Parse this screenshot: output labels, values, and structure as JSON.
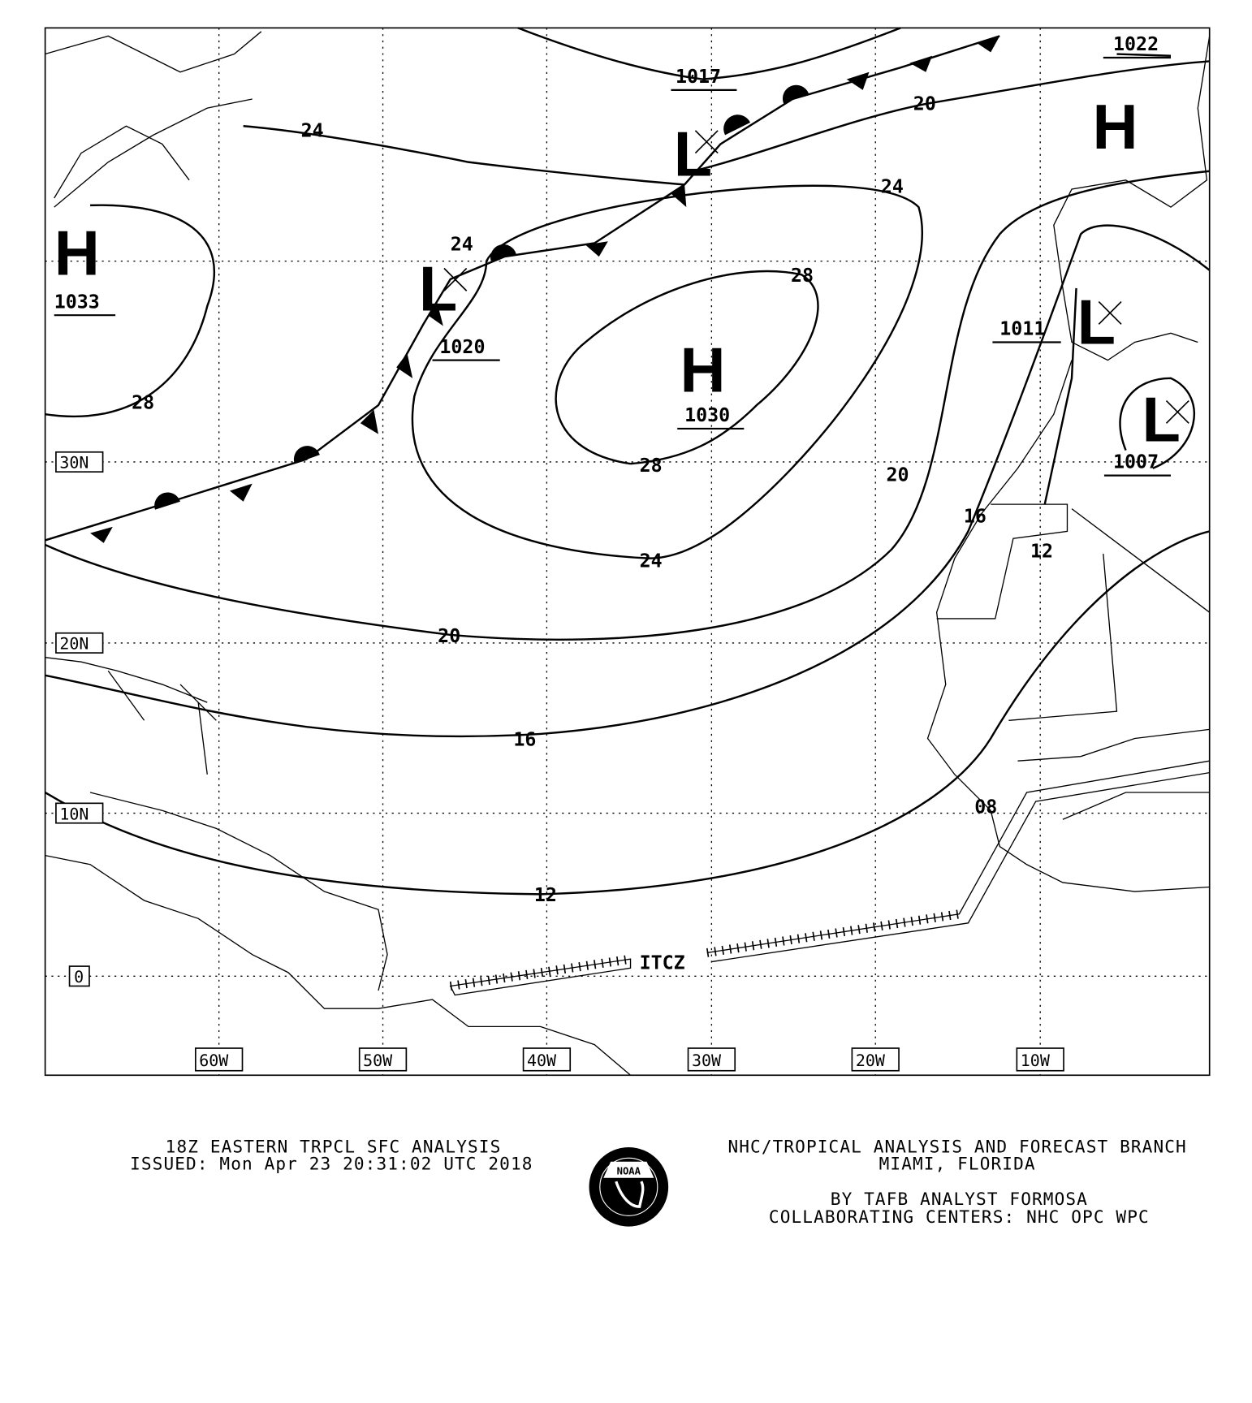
{
  "map": {
    "isobar_labels": [
      "1017",
      "1022",
      "20",
      "24",
      "24",
      "1033",
      "1020",
      "28",
      "28",
      "1030",
      "24",
      "1011",
      "1007",
      "20",
      "16",
      "12",
      "28",
      "24",
      "20",
      "16",
      "12",
      "08"
    ],
    "pressure_centers": [
      {
        "type": "H",
        "value": "1033"
      },
      {
        "type": "L",
        "value": "1020"
      },
      {
        "type": "L",
        "value": "1017"
      },
      {
        "type": "H",
        "value": "1030"
      },
      {
        "type": "H",
        "value": "1022"
      },
      {
        "type": "L",
        "value": "1011"
      },
      {
        "type": "L",
        "value": "1007"
      }
    ],
    "feature_labels": {
      "itcz": "ITCZ"
    },
    "latitude_labels": [
      "30N",
      "20N",
      "10N",
      "0"
    ],
    "longitude_labels": [
      "60W",
      "50W",
      "40W",
      "30W",
      "20W",
      "10W"
    ]
  },
  "footer": {
    "title": "18Z EASTERN TRPCL SFC ANALYSIS",
    "issued": "ISSUED: Mon Apr 23 20:31:02 UTC 2018",
    "org": "NHC/TROPICAL ANALYSIS AND FORECAST BRANCH",
    "location": "MIAMI,  FLORIDA",
    "analyst": "BY TAFB ANALYST  FORMOSA",
    "collab": "COLLABORATING CENTERS: NHC OPC WPC",
    "logo_text": "NOAA"
  }
}
